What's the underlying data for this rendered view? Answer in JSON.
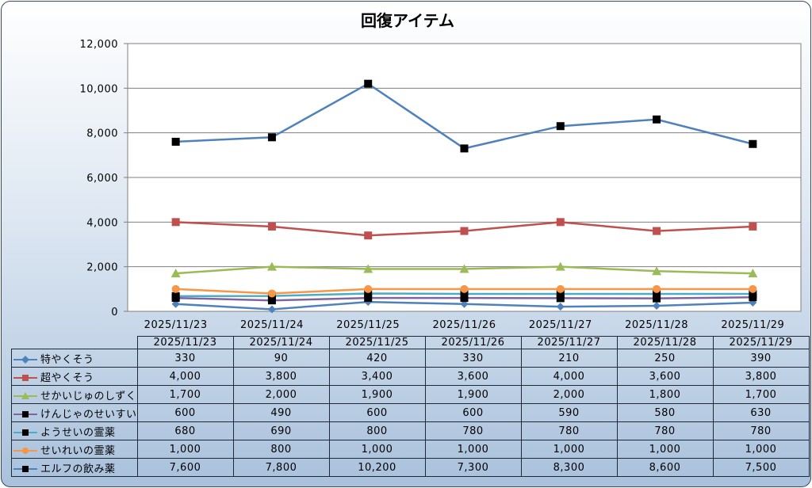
{
  "chart_data": {
    "type": "line",
    "title": "回復アイテム",
    "categories": [
      "2025/11/23",
      "2025/11/24",
      "2025/11/25",
      "2025/11/26",
      "2025/11/27",
      "2025/11/28",
      "2025/11/29"
    ],
    "ylim": [
      0,
      12000
    ],
    "yticks": [
      "0",
      "2,000",
      "4,000",
      "6,000",
      "8,000",
      "10,000",
      "12,000"
    ],
    "grid": true,
    "legend": "data-table",
    "series": [
      {
        "name": "特やくそう",
        "color": "#4f81bd",
        "marker": "diamond",
        "values": [
          330,
          90,
          420,
          330,
          210,
          250,
          390
        ],
        "labels": [
          "330",
          "90",
          "420",
          "330",
          "210",
          "250",
          "390"
        ]
      },
      {
        "name": "超やくそう",
        "color": "#c0504d",
        "marker": "square",
        "values": [
          4000,
          3800,
          3400,
          3600,
          4000,
          3600,
          3800
        ],
        "labels": [
          "4,000",
          "3,800",
          "3,400",
          "3,600",
          "4,000",
          "3,600",
          "3,800"
        ]
      },
      {
        "name": "せかいじゅのしずく",
        "color": "#9bbb59",
        "marker": "triangle",
        "values": [
          1700,
          2000,
          1900,
          1900,
          2000,
          1800,
          1700
        ],
        "labels": [
          "1,700",
          "2,000",
          "1,900",
          "1,900",
          "2,000",
          "1,800",
          "1,700"
        ]
      },
      {
        "name": "けんじゃのせいすい",
        "color": "#8064a2",
        "marker": "square-black",
        "values": [
          600,
          490,
          600,
          600,
          590,
          580,
          630
        ],
        "labels": [
          "600",
          "490",
          "600",
          "600",
          "590",
          "580",
          "630"
        ]
      },
      {
        "name": "ようせいの霊薬",
        "color": "#4bacc6",
        "marker": "square-black",
        "values": [
          680,
          690,
          800,
          780,
          780,
          780,
          780
        ],
        "labels": [
          "680",
          "690",
          "800",
          "780",
          "780",
          "780",
          "780"
        ]
      },
      {
        "name": "せいれいの霊薬",
        "color": "#f79646",
        "marker": "circle",
        "values": [
          1000,
          800,
          1000,
          1000,
          1000,
          1000,
          1000
        ],
        "labels": [
          "1,000",
          "800",
          "1,000",
          "1,000",
          "1,000",
          "1,000",
          "1,000"
        ]
      },
      {
        "name": "エルフの飲み薬",
        "color": "#4f81bd",
        "marker": "square-black",
        "values": [
          7600,
          7800,
          10200,
          7300,
          8300,
          8600,
          7500
        ],
        "labels": [
          "7,600",
          "7,800",
          "10,200",
          "7,300",
          "8,300",
          "8,600",
          "7,500"
        ]
      }
    ]
  }
}
